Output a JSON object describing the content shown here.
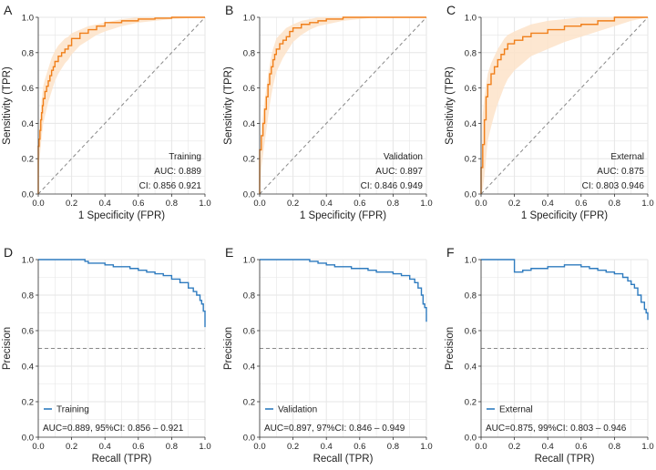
{
  "chart_data": [
    {
      "panel": "A",
      "type": "line",
      "kind": "roc",
      "color": "#f07f1a",
      "xlabel": "1  Specificity (FPR)",
      "ylabel": "Sensitivity (TPR)",
      "xlim": [
        0,
        1
      ],
      "ylim": [
        0,
        1
      ],
      "xticks": [
        "0.0",
        "0.2",
        "0.4",
        "0.6",
        "0.8",
        "1.0"
      ],
      "yticks": [
        "0.0",
        "0.2",
        "0.4",
        "0.6",
        "0.8",
        "1.0"
      ],
      "legend_lines": [
        "Training",
        "AUC: 0.889",
        "CI: 0.856  0.921"
      ],
      "x": [
        0,
        0.005,
        0.01,
        0.015,
        0.02,
        0.025,
        0.03,
        0.04,
        0.05,
        0.06,
        0.07,
        0.08,
        0.09,
        0.1,
        0.12,
        0.14,
        0.16,
        0.18,
        0.2,
        0.25,
        0.3,
        0.35,
        0.4,
        0.5,
        0.6,
        0.7,
        0.8,
        0.9,
        1.0
      ],
      "y": [
        0,
        0.27,
        0.31,
        0.36,
        0.42,
        0.46,
        0.5,
        0.54,
        0.58,
        0.61,
        0.64,
        0.67,
        0.7,
        0.72,
        0.75,
        0.78,
        0.8,
        0.82,
        0.84,
        0.88,
        0.91,
        0.93,
        0.95,
        0.97,
        0.98,
        0.99,
        0.995,
        1.0,
        1.0
      ],
      "band_low": [
        0,
        0.18,
        0.22,
        0.27,
        0.32,
        0.36,
        0.4,
        0.44,
        0.48,
        0.52,
        0.55,
        0.58,
        0.61,
        0.64,
        0.68,
        0.71,
        0.74,
        0.76,
        0.79,
        0.84,
        0.87,
        0.9,
        0.92,
        0.95,
        0.97,
        0.98,
        0.99,
        0.995,
        1.0
      ],
      "band_high": [
        0,
        0.38,
        0.43,
        0.48,
        0.53,
        0.57,
        0.61,
        0.65,
        0.68,
        0.71,
        0.74,
        0.77,
        0.79,
        0.81,
        0.84,
        0.86,
        0.88,
        0.89,
        0.91,
        0.93,
        0.95,
        0.96,
        0.97,
        0.99,
        1.0,
        1.0,
        1.0,
        1.0,
        1.0
      ]
    },
    {
      "panel": "B",
      "type": "line",
      "kind": "roc",
      "color": "#f07f1a",
      "xlabel": "1  Specificity (FPR)",
      "ylabel": "Sensitivity (TPR)",
      "xlim": [
        0,
        1
      ],
      "ylim": [
        0,
        1
      ],
      "xticks": [
        "0.0",
        "0.2",
        "0.4",
        "0.6",
        "0.8",
        "1.0"
      ],
      "yticks": [
        "0.0",
        "0.2",
        "0.4",
        "0.6",
        "0.8",
        "1.0"
      ],
      "legend_lines": [
        "Validation",
        "AUC: 0.897",
        "CI: 0.846  0.949"
      ],
      "x": [
        0,
        0.01,
        0.02,
        0.03,
        0.04,
        0.05,
        0.06,
        0.07,
        0.08,
        0.09,
        0.1,
        0.12,
        0.14,
        0.16,
        0.18,
        0.2,
        0.25,
        0.3,
        0.35,
        0.4,
        0.5,
        0.6,
        0.7,
        0.8,
        0.9,
        1.0
      ],
      "y": [
        0,
        0.25,
        0.33,
        0.4,
        0.48,
        0.55,
        0.62,
        0.68,
        0.72,
        0.76,
        0.79,
        0.82,
        0.85,
        0.87,
        0.89,
        0.92,
        0.94,
        0.96,
        0.97,
        0.98,
        0.99,
        1.0,
        1.0,
        1.0,
        1.0,
        1.0
      ],
      "band_low": [
        0,
        0.15,
        0.22,
        0.29,
        0.36,
        0.43,
        0.5,
        0.56,
        0.61,
        0.65,
        0.69,
        0.73,
        0.77,
        0.8,
        0.83,
        0.86,
        0.9,
        0.93,
        0.95,
        0.96,
        0.98,
        0.99,
        1.0,
        1.0,
        1.0,
        1.0
      ],
      "band_high": [
        0,
        0.37,
        0.45,
        0.53,
        0.6,
        0.67,
        0.73,
        0.78,
        0.82,
        0.85,
        0.88,
        0.9,
        0.92,
        0.94,
        0.95,
        0.96,
        0.98,
        0.99,
        1.0,
        1.0,
        1.0,
        1.0,
        1.0,
        1.0,
        1.0,
        1.0
      ]
    },
    {
      "panel": "C",
      "type": "line",
      "kind": "roc",
      "color": "#f07f1a",
      "xlabel": "1  Specificity (FPR)",
      "ylabel": "Sensitivity (TPR)",
      "xlim": [
        0,
        1
      ],
      "ylim": [
        0,
        1
      ],
      "xticks": [
        "0.0",
        "0.2",
        "0.4",
        "0.6",
        "0.8",
        "1.0"
      ],
      "yticks": [
        "0.0",
        "0.2",
        "0.4",
        "0.6",
        "0.8",
        "1.0"
      ],
      "legend_lines": [
        "External",
        "AUC: 0.875",
        "CI: 0.803  0.946"
      ],
      "x": [
        0,
        0.01,
        0.02,
        0.03,
        0.04,
        0.06,
        0.08,
        0.1,
        0.12,
        0.14,
        0.16,
        0.2,
        0.25,
        0.3,
        0.4,
        0.5,
        0.6,
        0.7,
        0.8,
        0.9,
        1.0
      ],
      "y": [
        0,
        0.15,
        0.28,
        0.42,
        0.55,
        0.62,
        0.68,
        0.72,
        0.76,
        0.79,
        0.82,
        0.85,
        0.87,
        0.89,
        0.91,
        0.93,
        0.95,
        0.96,
        0.98,
        1.0,
        1.0
      ],
      "band_low": [
        0,
        0.03,
        0.1,
        0.2,
        0.3,
        0.38,
        0.45,
        0.51,
        0.56,
        0.61,
        0.65,
        0.7,
        0.74,
        0.78,
        0.82,
        0.86,
        0.89,
        0.92,
        0.95,
        0.98,
        1.0
      ],
      "band_high": [
        0,
        0.45,
        0.55,
        0.62,
        0.68,
        0.74,
        0.78,
        0.82,
        0.85,
        0.88,
        0.9,
        0.92,
        0.94,
        0.96,
        0.98,
        0.99,
        1.0,
        1.0,
        1.0,
        1.0,
        1.0
      ]
    },
    {
      "panel": "D",
      "type": "line",
      "kind": "pr",
      "color": "#2e7bbf",
      "xlabel": "Recall (TPR)",
      "ylabel": "Precision",
      "xlim": [
        0,
        1
      ],
      "ylim": [
        0,
        1
      ],
      "xticks": [
        "0.0",
        "0.2",
        "0.4",
        "0.6",
        "0.8",
        "1.0"
      ],
      "yticks": [
        "0.0",
        "0.2",
        "0.4",
        "0.6",
        "0.8",
        "1.0"
      ],
      "baseline": 0.5,
      "legend_label": "Training",
      "annotation": "AUC=0.889, 95%CI: 0.856 – 0.921",
      "x": [
        0,
        0.1,
        0.2,
        0.28,
        0.3,
        0.35,
        0.4,
        0.45,
        0.5,
        0.55,
        0.6,
        0.65,
        0.7,
        0.75,
        0.8,
        0.85,
        0.9,
        0.93,
        0.95,
        0.97,
        0.98,
        0.99,
        1.0
      ],
      "y": [
        1.0,
        1.0,
        1.0,
        0.99,
        0.98,
        0.98,
        0.97,
        0.96,
        0.96,
        0.95,
        0.94,
        0.93,
        0.92,
        0.91,
        0.89,
        0.87,
        0.84,
        0.82,
        0.8,
        0.77,
        0.75,
        0.71,
        0.62
      ]
    },
    {
      "panel": "E",
      "type": "line",
      "kind": "pr",
      "color": "#2e7bbf",
      "xlabel": "Recall (TPR)",
      "ylabel": "Precision",
      "xlim": [
        0,
        1
      ],
      "ylim": [
        0,
        1
      ],
      "xticks": [
        "0.0",
        "0.2",
        "0.4",
        "0.6",
        "0.8",
        "1.0"
      ],
      "yticks": [
        "0.0",
        "0.2",
        "0.4",
        "0.6",
        "0.8",
        "1.0"
      ],
      "baseline": 0.5,
      "legend_label": "Validation",
      "annotation": "AUC=0.897, 97%CI: 0.846 – 0.949",
      "x": [
        0,
        0.1,
        0.2,
        0.28,
        0.3,
        0.35,
        0.4,
        0.45,
        0.5,
        0.55,
        0.6,
        0.65,
        0.7,
        0.75,
        0.8,
        0.85,
        0.9,
        0.93,
        0.95,
        0.97,
        0.98,
        0.99,
        1.0
      ],
      "y": [
        1.0,
        1.0,
        1.0,
        1.0,
        0.99,
        0.98,
        0.97,
        0.96,
        0.96,
        0.95,
        0.95,
        0.94,
        0.93,
        0.93,
        0.92,
        0.91,
        0.89,
        0.87,
        0.84,
        0.8,
        0.75,
        0.73,
        0.65
      ]
    },
    {
      "panel": "F",
      "type": "line",
      "kind": "pr",
      "color": "#2e7bbf",
      "xlabel": "Recall (TPR)",
      "ylabel": "Precision",
      "xlim": [
        0,
        1
      ],
      "ylim": [
        0,
        1
      ],
      "xticks": [
        "0.0",
        "0.2",
        "0.4",
        "0.6",
        "0.8",
        "1.0"
      ],
      "yticks": [
        "0.0",
        "0.2",
        "0.4",
        "0.6",
        "0.8",
        "1.0"
      ],
      "baseline": 0.5,
      "legend_label": "External",
      "annotation": "AUC=0.875, 99%CI: 0.803 – 0.946",
      "x": [
        0,
        0.1,
        0.19,
        0.2,
        0.25,
        0.3,
        0.4,
        0.5,
        0.55,
        0.6,
        0.65,
        0.7,
        0.75,
        0.8,
        0.85,
        0.88,
        0.9,
        0.92,
        0.94,
        0.96,
        0.98,
        0.99,
        1.0
      ],
      "y": [
        1.0,
        1.0,
        1.0,
        0.93,
        0.94,
        0.95,
        0.96,
        0.97,
        0.97,
        0.96,
        0.95,
        0.94,
        0.93,
        0.92,
        0.9,
        0.88,
        0.86,
        0.84,
        0.8,
        0.76,
        0.72,
        0.7,
        0.66
      ]
    }
  ],
  "colors": {
    "roc": "#f07f1a",
    "roc_band": "#fde3c9",
    "pr": "#2e7bbf",
    "grid": "#e6e6e6",
    "diagonal": "#888888"
  }
}
